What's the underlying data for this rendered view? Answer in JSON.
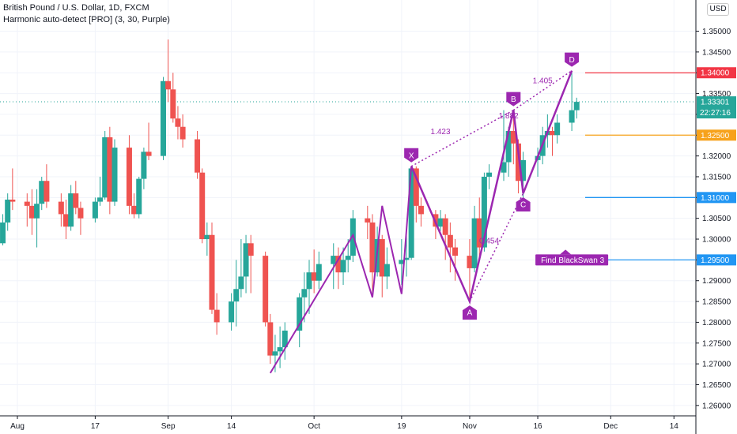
{
  "header": {
    "symbol": "British Pound / U.S. Dollar, 1D, FXCM",
    "indicator": "Harmonic auto-detect [PRO] (3, 30, Purple)",
    "currency": "USD"
  },
  "chart_data": {
    "type": "candlestick",
    "yaxis": {
      "range": [
        1.2575,
        1.3575
      ],
      "ticks": [
        "1.35000",
        "1.34500",
        "1.34000",
        "1.33500",
        "1.33000",
        "1.32500",
        "1.32000",
        "1.31500",
        "1.31000",
        "1.30500",
        "1.30000",
        "1.29500",
        "1.29000",
        "1.28500",
        "1.28000",
        "1.27500",
        "1.27000",
        "1.26500",
        "1.26000"
      ]
    },
    "xaxis": {
      "ticks": [
        {
          "label": "Aug",
          "date": "2020-08-01"
        },
        {
          "label": "17",
          "date": "2020-08-17"
        },
        {
          "label": "Sep",
          "date": "2020-09-01"
        },
        {
          "label": "14",
          "date": "2020-09-14"
        },
        {
          "label": "Oct",
          "date": "2020-10-01"
        },
        {
          "label": "19",
          "date": "2020-10-19"
        },
        {
          "label": "Nov",
          "date": "2020-11-02"
        },
        {
          "label": "16",
          "date": "2020-11-16"
        },
        {
          "label": "Dec",
          "date": "2020-12-01"
        },
        {
          "label": "14",
          "date": "2020-12-14"
        }
      ]
    },
    "candles": [
      {
        "date": "2020-07-29",
        "o": 1.299,
        "h": 1.306,
        "l": 1.2985,
        "c": 1.304
      },
      {
        "date": "2020-07-30",
        "o": 1.304,
        "h": 1.311,
        "l": 1.302,
        "c": 1.3095
      },
      {
        "date": "2020-07-31",
        "o": 1.3095,
        "h": 1.317,
        "l": 1.307,
        "c": 1.309
      },
      {
        "date": "2020-08-03",
        "o": 1.309,
        "h": 1.311,
        "l": 1.303,
        "c": 1.308
      },
      {
        "date": "2020-08-04",
        "o": 1.308,
        "h": 1.312,
        "l": 1.301,
        "c": 1.305
      },
      {
        "date": "2020-08-05",
        "o": 1.305,
        "h": 1.312,
        "l": 1.298,
        "c": 1.3085
      },
      {
        "date": "2020-08-06",
        "o": 1.3085,
        "h": 1.315,
        "l": 1.307,
        "c": 1.314
      },
      {
        "date": "2020-08-07",
        "o": 1.314,
        "h": 1.318,
        "l": 1.3075,
        "c": 1.309
      },
      {
        "date": "2020-08-10",
        "o": 1.309,
        "h": 1.311,
        "l": 1.303,
        "c": 1.306
      },
      {
        "date": "2020-08-11",
        "o": 1.306,
        "h": 1.3095,
        "l": 1.3,
        "c": 1.303
      },
      {
        "date": "2020-08-12",
        "o": 1.303,
        "h": 1.313,
        "l": 1.302,
        "c": 1.311
      },
      {
        "date": "2020-08-13",
        "o": 1.311,
        "h": 1.314,
        "l": 1.306,
        "c": 1.3075
      },
      {
        "date": "2020-08-14",
        "o": 1.3075,
        "h": 1.309,
        "l": 1.301,
        "c": 1.305
      },
      {
        "date": "2020-08-17",
        "o": 1.305,
        "h": 1.31,
        "l": 1.304,
        "c": 1.309
      },
      {
        "date": "2020-08-18",
        "o": 1.309,
        "h": 1.315,
        "l": 1.308,
        "c": 1.31
      },
      {
        "date": "2020-08-19",
        "o": 1.31,
        "h": 1.326,
        "l": 1.3095,
        "c": 1.3245
      },
      {
        "date": "2020-08-20",
        "o": 1.3245,
        "h": 1.327,
        "l": 1.306,
        "c": 1.309
      },
      {
        "date": "2020-08-21",
        "o": 1.309,
        "h": 1.324,
        "l": 1.308,
        "c": 1.322
      },
      {
        "date": "2020-08-24",
        "o": 1.322,
        "h": 1.325,
        "l": 1.306,
        "c": 1.308
      },
      {
        "date": "2020-08-25",
        "o": 1.308,
        "h": 1.311,
        "l": 1.305,
        "c": 1.306
      },
      {
        "date": "2020-08-26",
        "o": 1.306,
        "h": 1.315,
        "l": 1.305,
        "c": 1.3145
      },
      {
        "date": "2020-08-27",
        "o": 1.3145,
        "h": 1.322,
        "l": 1.312,
        "c": 1.321
      },
      {
        "date": "2020-08-28",
        "o": 1.321,
        "h": 1.328,
        "l": 1.319,
        "c": 1.32
      },
      {
        "date": "2020-08-31",
        "o": 1.32,
        "h": 1.339,
        "l": 1.319,
        "c": 1.338
      },
      {
        "date": "2020-09-01",
        "o": 1.338,
        "h": 1.348,
        "l": 1.333,
        "c": 1.336
      },
      {
        "date": "2020-09-02",
        "o": 1.336,
        "h": 1.34,
        "l": 1.328,
        "c": 1.329
      },
      {
        "date": "2020-09-03",
        "o": 1.329,
        "h": 1.332,
        "l": 1.324,
        "c": 1.327
      },
      {
        "date": "2020-09-04",
        "o": 1.327,
        "h": 1.33,
        "l": 1.322,
        "c": 1.324
      },
      {
        "date": "2020-09-07",
        "o": 1.324,
        "h": 1.326,
        "l": 1.3145,
        "c": 1.316
      },
      {
        "date": "2020-09-08",
        "o": 1.316,
        "h": 1.317,
        "l": 1.299,
        "c": 1.3
      },
      {
        "date": "2020-09-09",
        "o": 1.3,
        "h": 1.304,
        "l": 1.296,
        "c": 1.301
      },
      {
        "date": "2020-09-10",
        "o": 1.301,
        "h": 1.304,
        "l": 1.282,
        "c": 1.283
      },
      {
        "date": "2020-09-11",
        "o": 1.283,
        "h": 1.287,
        "l": 1.277,
        "c": 1.28
      },
      {
        "date": "2020-09-14",
        "o": 1.28,
        "h": 1.287,
        "l": 1.278,
        "c": 1.285
      },
      {
        "date": "2020-09-15",
        "o": 1.285,
        "h": 1.295,
        "l": 1.279,
        "c": 1.288
      },
      {
        "date": "2020-09-16",
        "o": 1.288,
        "h": 1.3,
        "l": 1.286,
        "c": 1.291
      },
      {
        "date": "2020-09-17",
        "o": 1.291,
        "h": 1.301,
        "l": 1.287,
        "c": 1.299
      },
      {
        "date": "2020-09-18",
        "o": 1.299,
        "h": 1.301,
        "l": 1.287,
        "c": 1.296
      },
      {
        "date": "2020-09-21",
        "o": 1.296,
        "h": 1.297,
        "l": 1.279,
        "c": 1.28
      },
      {
        "date": "2020-09-22",
        "o": 1.28,
        "h": 1.282,
        "l": 1.27,
        "c": 1.272
      },
      {
        "date": "2020-09-23",
        "o": 1.272,
        "h": 1.277,
        "l": 1.268,
        "c": 1.273
      },
      {
        "date": "2020-09-24",
        "o": 1.273,
        "h": 1.279,
        "l": 1.269,
        "c": 1.274
      },
      {
        "date": "2020-09-25",
        "o": 1.274,
        "h": 1.28,
        "l": 1.271,
        "c": 1.278
      },
      {
        "date": "2020-09-28",
        "o": 1.278,
        "h": 1.287,
        "l": 1.274,
        "c": 1.286
      },
      {
        "date": "2020-09-29",
        "o": 1.286,
        "h": 1.292,
        "l": 1.28,
        "c": 1.288
      },
      {
        "date": "2020-09-30",
        "o": 1.288,
        "h": 1.295,
        "l": 1.282,
        "c": 1.292
      },
      {
        "date": "2020-10-01",
        "o": 1.292,
        "h": 1.2975,
        "l": 1.287,
        "c": 1.29
      },
      {
        "date": "2020-10-02",
        "o": 1.29,
        "h": 1.297,
        "l": 1.288,
        "c": 1.294
      },
      {
        "date": "2020-10-05",
        "o": 1.294,
        "h": 1.299,
        "l": 1.288,
        "c": 1.296
      },
      {
        "date": "2020-10-06",
        "o": 1.296,
        "h": 1.298,
        "l": 1.288,
        "c": 1.292
      },
      {
        "date": "2020-10-07",
        "o": 1.292,
        "h": 1.298,
        "l": 1.289,
        "c": 1.295
      },
      {
        "date": "2020-10-08",
        "o": 1.295,
        "h": 1.3,
        "l": 1.292,
        "c": 1.296
      },
      {
        "date": "2020-10-09",
        "o": 1.296,
        "h": 1.307,
        "l": 1.2945,
        "c": 1.305
      },
      {
        "date": "2020-10-12",
        "o": 1.305,
        "h": 1.308,
        "l": 1.3,
        "c": 1.304
      },
      {
        "date": "2020-10-13",
        "o": 1.304,
        "h": 1.306,
        "l": 1.286,
        "c": 1.292
      },
      {
        "date": "2020-10-14",
        "o": 1.292,
        "h": 1.303,
        "l": 1.291,
        "c": 1.3
      },
      {
        "date": "2020-10-15",
        "o": 1.3,
        "h": 1.301,
        "l": 1.286,
        "c": 1.291
      },
      {
        "date": "2020-10-16",
        "o": 1.291,
        "h": 1.298,
        "l": 1.288,
        "c": 1.294
      },
      {
        "date": "2020-10-19",
        "o": 1.294,
        "h": 1.3,
        "l": 1.289,
        "c": 1.295
      },
      {
        "date": "2020-10-20",
        "o": 1.295,
        "h": 1.303,
        "l": 1.291,
        "c": 1.2955
      },
      {
        "date": "2020-10-21",
        "o": 1.2955,
        "h": 1.3175,
        "l": 1.295,
        "c": 1.317
      },
      {
        "date": "2020-10-22",
        "o": 1.317,
        "h": 1.3175,
        "l": 1.304,
        "c": 1.308
      },
      {
        "date": "2020-10-23",
        "o": 1.308,
        "h": 1.31,
        "l": 1.303,
        "c": 1.306
      },
      {
        "date": "2020-10-26",
        "o": 1.306,
        "h": 1.307,
        "l": 1.3,
        "c": 1.303
      },
      {
        "date": "2020-10-27",
        "o": 1.303,
        "h": 1.307,
        "l": 1.302,
        "c": 1.305
      },
      {
        "date": "2020-10-28",
        "o": 1.305,
        "h": 1.306,
        "l": 1.295,
        "c": 1.301
      },
      {
        "date": "2020-10-29",
        "o": 1.301,
        "h": 1.304,
        "l": 1.292,
        "c": 1.298
      },
      {
        "date": "2020-10-30",
        "o": 1.298,
        "h": 1.3,
        "l": 1.29,
        "c": 1.296
      },
      {
        "date": "2020-11-02",
        "o": 1.296,
        "h": 1.3,
        "l": 1.285,
        "c": 1.293
      },
      {
        "date": "2020-11-03",
        "o": 1.293,
        "h": 1.308,
        "l": 1.292,
        "c": 1.305
      },
      {
        "date": "2020-11-04",
        "o": 1.305,
        "h": 1.31,
        "l": 1.295,
        "c": 1.298
      },
      {
        "date": "2020-11-05",
        "o": 1.298,
        "h": 1.316,
        "l": 1.297,
        "c": 1.315
      },
      {
        "date": "2020-11-06",
        "o": 1.315,
        "h": 1.318,
        "l": 1.312,
        "c": 1.316
      },
      {
        "date": "2020-11-09",
        "o": 1.316,
        "h": 1.331,
        "l": 1.314,
        "c": 1.3185
      },
      {
        "date": "2020-11-10",
        "o": 1.3185,
        "h": 1.327,
        "l": 1.315,
        "c": 1.326
      },
      {
        "date": "2020-11-11",
        "o": 1.326,
        "h": 1.331,
        "l": 1.318,
        "c": 1.323
      },
      {
        "date": "2020-11-12",
        "o": 1.323,
        "h": 1.324,
        "l": 1.311,
        "c": 1.314
      },
      {
        "date": "2020-11-13",
        "o": 1.314,
        "h": 1.321,
        "l": 1.31,
        "c": 1.319
      },
      {
        "date": "2020-11-16",
        "o": 1.319,
        "h": 1.322,
        "l": 1.315,
        "c": 1.32
      },
      {
        "date": "2020-11-17",
        "o": 1.32,
        "h": 1.327,
        "l": 1.318,
        "c": 1.325
      },
      {
        "date": "2020-11-18",
        "o": 1.325,
        "h": 1.33,
        "l": 1.322,
        "c": 1.326
      },
      {
        "date": "2020-11-19",
        "o": 1.326,
        "h": 1.327,
        "l": 1.32,
        "c": 1.325
      },
      {
        "date": "2020-11-20",
        "o": 1.325,
        "h": 1.33,
        "l": 1.323,
        "c": 1.328
      },
      {
        "date": "2020-11-23",
        "o": 1.328,
        "h": 1.34,
        "l": 1.326,
        "c": 1.331
      },
      {
        "date": "2020-11-24",
        "o": 1.331,
        "h": 1.334,
        "l": 1.329,
        "c": 1.333
      }
    ],
    "harmonic": {
      "points": [
        {
          "label": "X",
          "date": "2020-10-21",
          "price": 1.3175
        },
        {
          "label": "A",
          "date": "2020-11-02",
          "price": 1.285
        },
        {
          "label": "B",
          "date": "2020-11-11",
          "price": 1.331
        },
        {
          "label": "C",
          "date": "2020-11-13",
          "price": 1.311
        },
        {
          "label": "D",
          "date": "2020-11-23",
          "price": 1.3405
        }
      ],
      "ratios": [
        {
          "label": "1.423",
          "date": "2020-10-27",
          "price": 1.3252
        },
        {
          "label": "1.882",
          "date": "2020-11-10",
          "price": 1.329
        },
        {
          "label": "1.405",
          "date": "2020-11-17",
          "price": 1.3375
        },
        {
          "label": "0.454",
          "date": "2020-11-06",
          "price": 1.299
        }
      ],
      "zigzag": [
        {
          "date": "2020-09-22",
          "price": 1.2678
        },
        {
          "date": "2020-10-09",
          "price": 1.301
        },
        {
          "date": "2020-10-13",
          "price": 1.286
        },
        {
          "date": "2020-10-15",
          "price": 1.308
        },
        {
          "date": "2020-10-19",
          "price": 1.2868
        },
        {
          "date": "2020-10-21",
          "price": 1.3175
        }
      ]
    },
    "levels": [
      {
        "price": 1.34,
        "label": "1.34000",
        "color": "#f23645"
      },
      {
        "price": 1.325,
        "label": "1.32500",
        "color": "#f7a21b"
      },
      {
        "price": 1.31,
        "label": "1.31000",
        "color": "#2196f3"
      },
      {
        "price": 1.295,
        "label": "1.29500",
        "color": "#2196f3"
      }
    ],
    "last_price": {
      "price": 1.33301,
      "label": "1.33301",
      "countdown": "22:27:16",
      "color": "#26a69a"
    },
    "annotation": {
      "text": "Find BlackSwan 3",
      "date": "2020-11-23",
      "price": 1.295,
      "color": "#9c27b0"
    },
    "colors": {
      "up": "#26a69a",
      "down": "#ef5350",
      "pattern": "#9c27b0",
      "grid": "#f0f3fa"
    }
  }
}
